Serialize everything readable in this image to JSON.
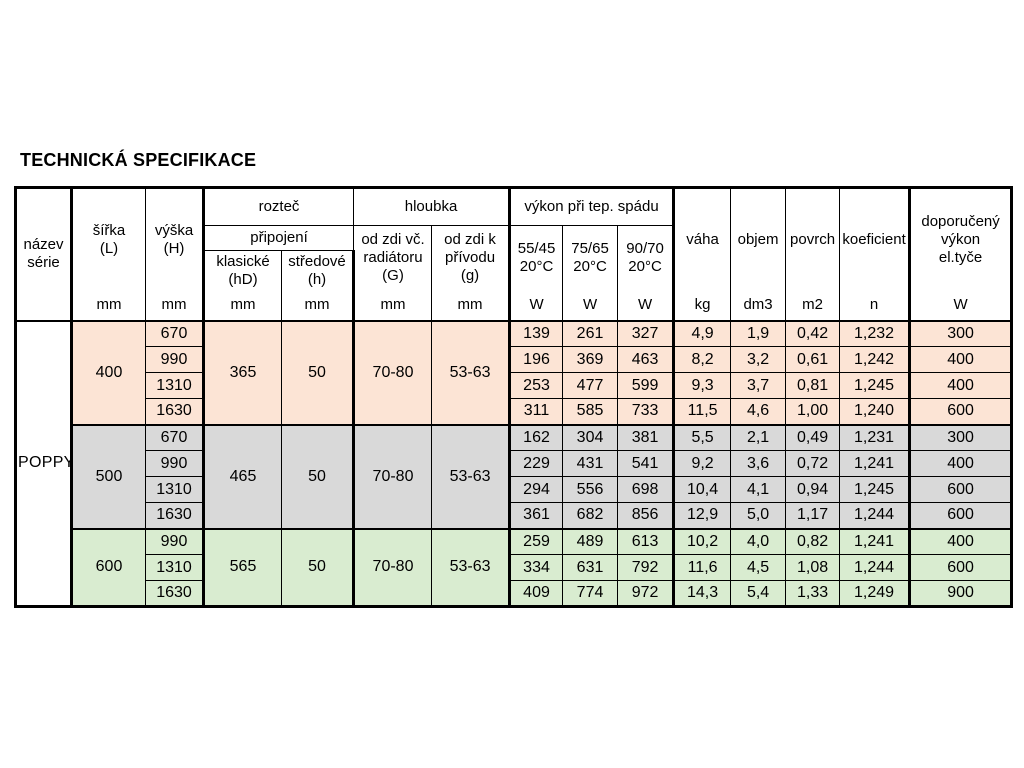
{
  "title": "TECHNICKÁ SPECIFIKACE",
  "colors": {
    "group_400_bg": "#fce4d5",
    "group_500_bg": "#d9d9d9",
    "group_600_bg": "#d9ecd0",
    "border": "#000000",
    "page_bg": "#ffffff"
  },
  "table": {
    "header": {
      "series": "název\nsérie",
      "width": "šířka\n(L)",
      "height": "výška\n(H)",
      "pitch": "rozteč",
      "connection": "připojení",
      "pitch_classic": "klasické\n(hD)",
      "pitch_center": "středové\n(h)",
      "depth": "hloubka",
      "depth_wall": "od zdi vč.\nradiátoru\n(G)",
      "depth_inlet": "od zdi k\npřívodu\n(g)",
      "power": "výkon při tep.  spádu",
      "power_5545": "55/45\n20°C",
      "power_7565": "75/65\n20°C",
      "power_9070": "90/70\n20°C",
      "weight": "váha",
      "volume": "objem",
      "surface": "povrch",
      "coefficient": "koeficient",
      "recommended": "doporučený\nvýkon\nel.tyče",
      "units": {
        "mm": "mm",
        "w": "W",
        "kg": "kg",
        "dm3": "dm3",
        "m2": "m2",
        "n": "n"
      }
    },
    "body": {
      "series_label": "POPPY",
      "groups": [
        {
          "bg": "#fce4d5",
          "width_mm": "400",
          "pitch_classic_mm": "365",
          "pitch_center_mm": "50",
          "depth_wall_mm": "70-80",
          "depth_inlet_mm": "53-63",
          "rows": [
            {
              "height_mm": "670",
              "p5545_w": "139",
              "p7565_w": "261",
              "p9070_w": "327",
              "weight_kg": "4,9",
              "volume_dm3": "1,9",
              "surface_m2": "0,42",
              "coefficient_n": "1,232",
              "el_rod_w": "300"
            },
            {
              "height_mm": "990",
              "p5545_w": "196",
              "p7565_w": "369",
              "p9070_w": "463",
              "weight_kg": "8,2",
              "volume_dm3": "3,2",
              "surface_m2": "0,61",
              "coefficient_n": "1,242",
              "el_rod_w": "400"
            },
            {
              "height_mm": "1310",
              "p5545_w": "253",
              "p7565_w": "477",
              "p9070_w": "599",
              "weight_kg": "9,3",
              "volume_dm3": "3,7",
              "surface_m2": "0,81",
              "coefficient_n": "1,245",
              "el_rod_w": "400"
            },
            {
              "height_mm": "1630",
              "p5545_w": "311",
              "p7565_w": "585",
              "p9070_w": "733",
              "weight_kg": "11,5",
              "volume_dm3": "4,6",
              "surface_m2": "1,00",
              "coefficient_n": "1,240",
              "el_rod_w": "600"
            }
          ]
        },
        {
          "bg": "#d9d9d9",
          "width_mm": "500",
          "pitch_classic_mm": "465",
          "pitch_center_mm": "50",
          "depth_wall_mm": "70-80",
          "depth_inlet_mm": "53-63",
          "rows": [
            {
              "height_mm": "670",
              "p5545_w": "162",
              "p7565_w": "304",
              "p9070_w": "381",
              "weight_kg": "5,5",
              "volume_dm3": "2,1",
              "surface_m2": "0,49",
              "coefficient_n": "1,231",
              "el_rod_w": "300"
            },
            {
              "height_mm": "990",
              "p5545_w": "229",
              "p7565_w": "431",
              "p9070_w": "541",
              "weight_kg": "9,2",
              "volume_dm3": "3,6",
              "surface_m2": "0,72",
              "coefficient_n": "1,241",
              "el_rod_w": "400"
            },
            {
              "height_mm": "1310",
              "p5545_w": "294",
              "p7565_w": "556",
              "p9070_w": "698",
              "weight_kg": "10,4",
              "volume_dm3": "4,1",
              "surface_m2": "0,94",
              "coefficient_n": "1,245",
              "el_rod_w": "600"
            },
            {
              "height_mm": "1630",
              "p5545_w": "361",
              "p7565_w": "682",
              "p9070_w": "856",
              "weight_kg": "12,9",
              "volume_dm3": "5,0",
              "surface_m2": "1,17",
              "coefficient_n": "1,244",
              "el_rod_w": "600"
            }
          ]
        },
        {
          "bg": "#d9ecd0",
          "width_mm": "600",
          "pitch_classic_mm": "565",
          "pitch_center_mm": "50",
          "depth_wall_mm": "70-80",
          "depth_inlet_mm": "53-63",
          "rows": [
            {
              "height_mm": "990",
              "p5545_w": "259",
              "p7565_w": "489",
              "p9070_w": "613",
              "weight_kg": "10,2",
              "volume_dm3": "4,0",
              "surface_m2": "0,82",
              "coefficient_n": "1,241",
              "el_rod_w": "400"
            },
            {
              "height_mm": "1310",
              "p5545_w": "334",
              "p7565_w": "631",
              "p9070_w": "792",
              "weight_kg": "11,6",
              "volume_dm3": "4,5",
              "surface_m2": "1,08",
              "coefficient_n": "1,244",
              "el_rod_w": "600"
            },
            {
              "height_mm": "1630",
              "p5545_w": "409",
              "p7565_w": "774",
              "p9070_w": "972",
              "weight_kg": "14,3",
              "volume_dm3": "5,4",
              "surface_m2": "1,33",
              "coefficient_n": "1,249",
              "el_rod_w": "900"
            }
          ]
        }
      ]
    }
  }
}
